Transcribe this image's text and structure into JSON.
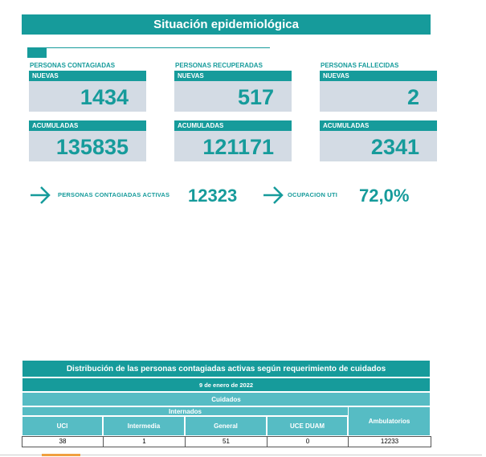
{
  "header": {
    "title": "Situación epidemiológica"
  },
  "panels": [
    {
      "title": "PERSONAS CONTAGIADAS",
      "new_label": "NUEVAS",
      "new": 1434,
      "total_label": "ACUMULADAS",
      "total": 135835
    },
    {
      "title": "PERSONAS RECUPERADAS",
      "new_label": "NUEVAS",
      "new": 517,
      "total_label": "ACUMULADAS",
      "total": 121171
    },
    {
      "title": "PERSONAS FALLECIDAS",
      "new_label": "NUEVAS",
      "new": 2,
      "total_label": "ACUMULADAS",
      "total": 2341
    }
  ],
  "summary": {
    "active_label": "PERSONAS CONTAGIADAS ACTIVAS",
    "active": 12323,
    "uti_label": "OCUPACION UTI",
    "uti": "72,0%"
  },
  "table": {
    "title": "Distribución de las personas contagiadas activas según requerimiento de cuidados",
    "date": "9 de enero de 2022",
    "group": "Cuidados",
    "subgroup": "Internados",
    "columns": [
      "UCI",
      "Intermedia",
      "General",
      "UCE DUAM",
      "Ambulatorios"
    ],
    "rows": [
      [
        38,
        1,
        51,
        0,
        12233
      ]
    ]
  }
}
